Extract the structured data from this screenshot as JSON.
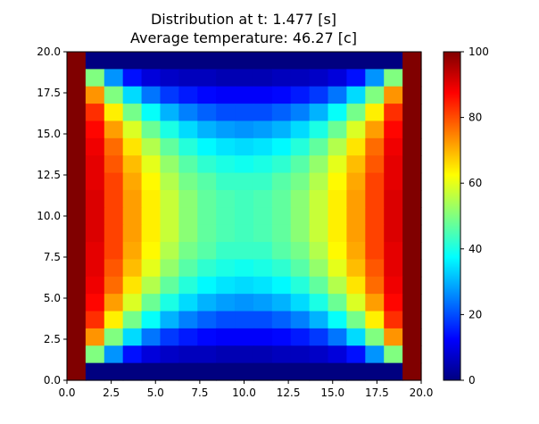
{
  "chart_data": {
    "type": "heatmap",
    "title": "Distribution at t: 1.477 [s]",
    "subtitle": "Average temperature: 46.27 [c]",
    "xlim": [
      0,
      20
    ],
    "ylim": [
      0,
      20
    ],
    "x_ticks": [
      "0.0",
      "2.5",
      "5.0",
      "7.5",
      "10.0",
      "12.5",
      "15.0",
      "17.5",
      "20.0"
    ],
    "y_ticks": [
      "0.0",
      "2.5",
      "5.0",
      "7.5",
      "10.0",
      "12.5",
      "15.0",
      "17.5",
      "20.0"
    ],
    "colorbar": {
      "cmap": "jet",
      "range": [
        0,
        100
      ],
      "ticks": [
        "0",
        "20",
        "40",
        "60",
        "80",
        "100"
      ]
    },
    "grid": false,
    "rows_top_to_bottom": [
      [
        100,
        0,
        0,
        0,
        0,
        0,
        0,
        0,
        0,
        0,
        0,
        0,
        0,
        0,
        0,
        0,
        0,
        0,
        100
      ],
      [
        100,
        50,
        27,
        14,
        9,
        7,
        6,
        6,
        5,
        5,
        5,
        6,
        6,
        7,
        9,
        14,
        27,
        50,
        100
      ],
      [
        100,
        73,
        50,
        34,
        24,
        18,
        15,
        13,
        12,
        12,
        12,
        13,
        15,
        18,
        24,
        34,
        50,
        73,
        100
      ],
      [
        100,
        83,
        64,
        49,
        38,
        30,
        25,
        22,
        20,
        20,
        20,
        22,
        25,
        30,
        38,
        49,
        64,
        83,
        100
      ],
      [
        100,
        87,
        72,
        59,
        48,
        40,
        34,
        30,
        28,
        27,
        28,
        30,
        34,
        40,
        48,
        59,
        72,
        87,
        100
      ],
      [
        100,
        89,
        77,
        65,
        55,
        47,
        41,
        37,
        35,
        34,
        35,
        37,
        41,
        47,
        55,
        65,
        77,
        89,
        100
      ],
      [
        100,
        90,
        79,
        69,
        60,
        52,
        46,
        42,
        40,
        39,
        40,
        42,
        46,
        52,
        60,
        69,
        79,
        90,
        100
      ],
      [
        100,
        90,
        81,
        71,
        63,
        55,
        49,
        46,
        43,
        43,
        43,
        46,
        49,
        55,
        63,
        71,
        81,
        90,
        100
      ],
      [
        100,
        91,
        81,
        72,
        64,
        57,
        51,
        47,
        45,
        44,
        45,
        47,
        51,
        57,
        64,
        72,
        81,
        91,
        100
      ],
      [
        100,
        91,
        81,
        72,
        64,
        57,
        51,
        47,
        45,
        44,
        45,
        47,
        51,
        57,
        64,
        72,
        81,
        91,
        100
      ],
      [
        100,
        91,
        81,
        72,
        64,
        57,
        51,
        47,
        45,
        44,
        45,
        47,
        51,
        57,
        64,
        72,
        81,
        91,
        100
      ],
      [
        100,
        90,
        81,
        71,
        63,
        55,
        49,
        46,
        43,
        43,
        43,
        46,
        49,
        55,
        63,
        71,
        81,
        90,
        100
      ],
      [
        100,
        90,
        79,
        69,
        60,
        52,
        46,
        42,
        40,
        39,
        40,
        42,
        46,
        52,
        60,
        69,
        79,
        90,
        100
      ],
      [
        100,
        89,
        77,
        65,
        55,
        47,
        41,
        37,
        35,
        34,
        35,
        37,
        41,
        47,
        55,
        65,
        77,
        89,
        100
      ],
      [
        100,
        87,
        72,
        59,
        48,
        40,
        34,
        30,
        28,
        27,
        28,
        30,
        34,
        40,
        48,
        59,
        72,
        87,
        100
      ],
      [
        100,
        83,
        64,
        49,
        38,
        30,
        25,
        22,
        20,
        20,
        20,
        22,
        25,
        30,
        38,
        49,
        64,
        83,
        100
      ],
      [
        100,
        73,
        50,
        34,
        24,
        18,
        15,
        13,
        12,
        12,
        12,
        13,
        15,
        18,
        24,
        34,
        50,
        73,
        100
      ],
      [
        100,
        50,
        27,
        14,
        9,
        7,
        6,
        6,
        5,
        5,
        5,
        6,
        6,
        7,
        9,
        14,
        27,
        50,
        100
      ],
      [
        100,
        0,
        0,
        0,
        0,
        0,
        0,
        0,
        0,
        0,
        0,
        0,
        0,
        0,
        0,
        0,
        0,
        0,
        100
      ]
    ]
  }
}
